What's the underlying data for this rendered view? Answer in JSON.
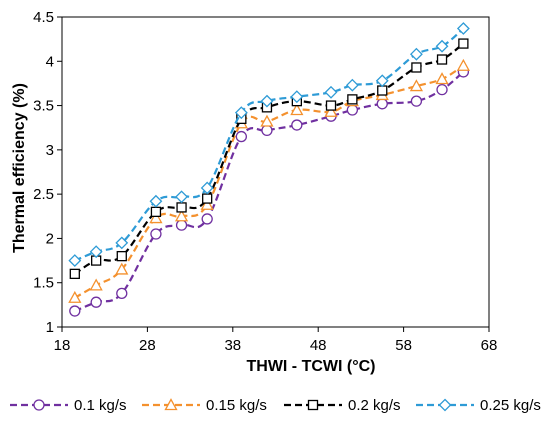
{
  "chart_data": {
    "type": "line",
    "title": "",
    "xlabel": "THWI - TCWI (°C)",
    "ylabel": "Thermal efficiency (%)",
    "xlim": [
      18,
      68
    ],
    "ylim": [
      1,
      4.5
    ],
    "xticks": [
      18,
      28,
      38,
      48,
      58,
      68
    ],
    "yticks": [
      1,
      1.5,
      2,
      2.5,
      3,
      3.5,
      4,
      4.5
    ],
    "ytick_labels": [
      "1",
      "1.5",
      "2",
      "2.5",
      "3",
      "3.5",
      "4",
      "4.5"
    ],
    "grid": false,
    "legend_position": "bottom",
    "series": [
      {
        "name": "0.1 kg/s",
        "color": "#7030A0",
        "marker": "circle",
        "x": [
          19.5,
          22,
          25,
          29,
          32,
          35,
          39,
          42,
          45.5,
          49.5,
          52,
          55.5,
          59.5,
          62.5,
          65
        ],
        "y": [
          1.18,
          1.28,
          1.38,
          2.05,
          2.15,
          2.22,
          3.15,
          3.22,
          3.28,
          3.38,
          3.45,
          3.52,
          3.55,
          3.68,
          3.88
        ]
      },
      {
        "name": "0.15 kg/s",
        "color": "#F4912E",
        "marker": "triangle",
        "x": [
          19.5,
          22,
          25,
          29,
          32,
          35,
          39,
          42,
          45.5,
          49.5,
          52,
          55.5,
          59.5,
          62.5,
          65
        ],
        "y": [
          1.33,
          1.47,
          1.65,
          2.23,
          2.25,
          2.38,
          3.3,
          3.32,
          3.45,
          3.43,
          3.55,
          3.62,
          3.72,
          3.8,
          3.95
        ]
      },
      {
        "name": "0.2 kg/s",
        "color": "#000000",
        "marker": "square",
        "x": [
          19.5,
          22,
          25,
          29,
          32,
          35,
          39,
          42,
          45.5,
          49.5,
          52,
          55.5,
          59.5,
          62.5,
          65
        ],
        "y": [
          1.6,
          1.75,
          1.8,
          2.3,
          2.35,
          2.45,
          3.35,
          3.48,
          3.55,
          3.5,
          3.57,
          3.67,
          3.93,
          4.02,
          4.2
        ]
      },
      {
        "name": "0.25 kg/s",
        "color": "#2E9BD6",
        "marker": "diamond",
        "x": [
          19.5,
          22,
          25,
          29,
          32,
          35,
          39,
          42,
          45.5,
          49.5,
          52,
          55.5,
          59.5,
          62.5,
          65
        ],
        "y": [
          1.75,
          1.85,
          1.95,
          2.42,
          2.47,
          2.57,
          3.42,
          3.55,
          3.6,
          3.65,
          3.73,
          3.78,
          4.08,
          4.17,
          4.37
        ]
      }
    ]
  }
}
